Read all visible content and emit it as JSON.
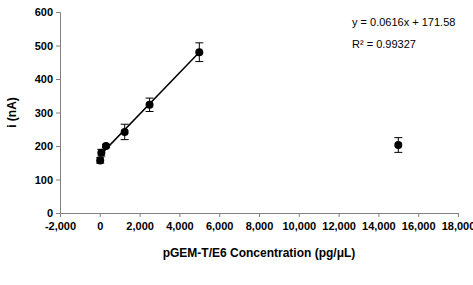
{
  "chart_data": {
    "type": "scatter",
    "x_label": "pGEM-T/E6 Concentration (pg/μL)",
    "y_label": "i (nA)",
    "annotations": [
      "y = 0.0616x + 171.58",
      "R² = 0.99327"
    ],
    "xlim": [
      -2000,
      18000
    ],
    "xticks": [
      {
        "value": -2000,
        "label": "-2,000"
      },
      0,
      {
        "value": 2000,
        "label": "2,000"
      },
      {
        "value": 4000,
        "label": "4,000"
      },
      {
        "value": 6000,
        "label": "6,000"
      },
      {
        "value": 8000,
        "label": "8,000"
      },
      {
        "value": 10000,
        "label": "10,000"
      },
      {
        "value": 12000,
        "label": "12,000"
      },
      {
        "value": 14000,
        "label": "14,000"
      },
      {
        "value": 16000,
        "label": "16,000"
      },
      {
        "value": 18000,
        "label": "18,000"
      }
    ],
    "ylim": [
      0,
      600
    ],
    "yticks": [
      0,
      100,
      200,
      300,
      400,
      500,
      600
    ],
    "grid": false,
    "series": [
      {
        "type": "scatter",
        "color": "#000000",
        "marker": "circle",
        "x": [
          19.5,
          78,
          312,
          1250,
          2500,
          5000,
          15000
        ],
        "values": [
          157,
          180,
          200,
          242,
          323,
          480,
          203
        ],
        "errors": [
          8,
          10,
          5,
          23,
          20,
          28,
          22
        ]
      },
      {
        "type": "line",
        "color": "#000000",
        "line_style": "solid",
        "x": [
          19.5,
          5000
        ],
        "values": [
          172.78,
          479.58
        ]
      }
    ]
  }
}
